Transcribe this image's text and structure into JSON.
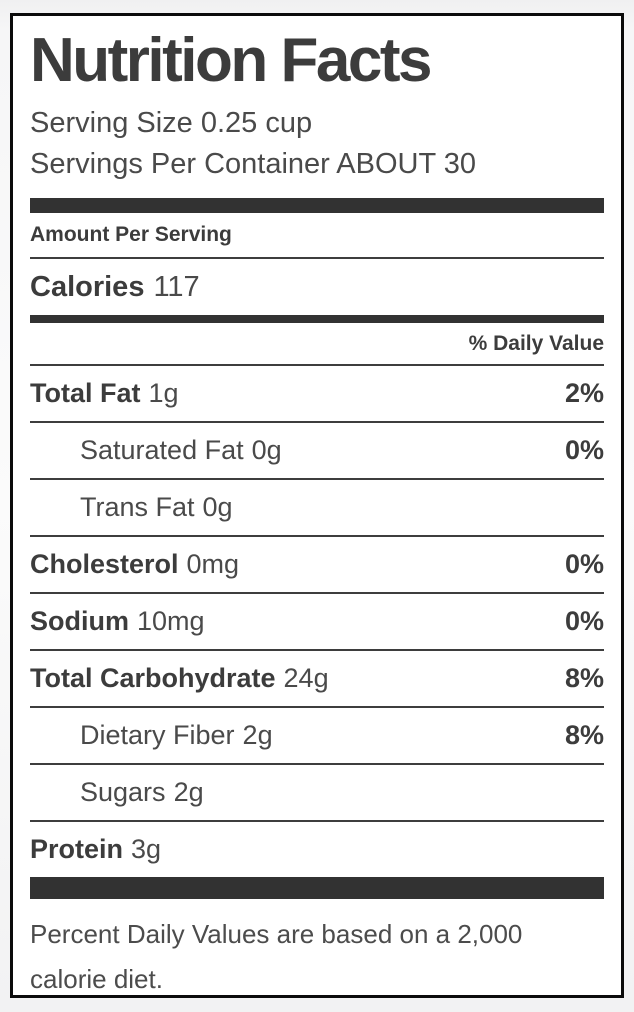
{
  "label": {
    "title": "Nutrition Facts",
    "serving_size": "Serving Size 0.25 cup",
    "servings_per_container": "Servings Per Container ABOUT 30",
    "amount_per_serving": "Amount Per Serving",
    "calories_label": "Calories",
    "calories_value": "117",
    "daily_value_header": "% Daily Value",
    "rows": [
      {
        "name": "Total Fat",
        "amount": "1g",
        "dv": "2%"
      },
      {
        "name": "Saturated Fat",
        "amount": "0g",
        "dv": "0%"
      },
      {
        "name": "Trans Fat",
        "amount": "0g",
        "dv": ""
      },
      {
        "name": "Cholesterol",
        "amount": "0mg",
        "dv": "0%"
      },
      {
        "name": "Sodium",
        "amount": "10mg",
        "dv": "0%"
      },
      {
        "name": "Total Carbohydrate",
        "amount": "24g",
        "dv": "8%"
      },
      {
        "name": "Dietary Fiber",
        "amount": "2g",
        "dv": "8%"
      },
      {
        "name": "Sugars",
        "amount": "2g",
        "dv": ""
      },
      {
        "name": "Protein",
        "amount": "3g",
        "dv": ""
      }
    ],
    "footnote": "Percent Daily Values are based on a 2,000 calorie diet."
  },
  "colors": {
    "ink": "#3c3c3c",
    "bar": "#323232",
    "border": "#0b0b0b",
    "label_background": "#ffffff",
    "page_background": "#f3f3f4"
  }
}
